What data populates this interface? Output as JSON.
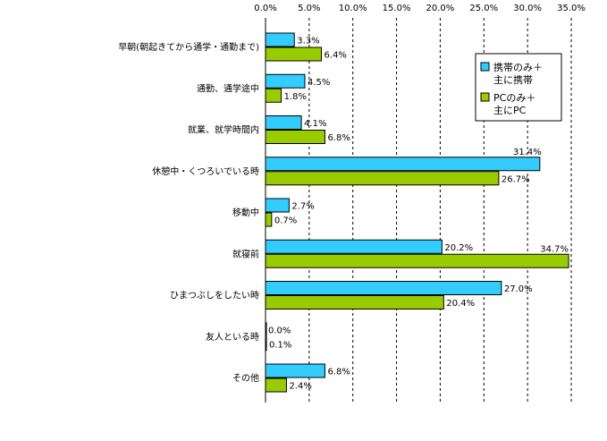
{
  "chart_data": {
    "type": "bar",
    "orientation": "horizontal",
    "title": "",
    "xlabel": "",
    "ylabel": "",
    "xlim": [
      0,
      35
    ],
    "x_ticks": [
      0,
      5,
      10,
      15,
      20,
      25,
      30,
      35
    ],
    "x_tick_labels": [
      "0.0%",
      "5.0%",
      "10.0%",
      "15.0%",
      "20.0%",
      "25.0%",
      "30.0%",
      "35.0%"
    ],
    "x_axis_position": "top",
    "grid": "vertical-dashed",
    "legend_position": "right",
    "categories": [
      "早朝(朝起きてから通学・通勤まで)",
      "通勤、通学途中",
      "就業、就学時間内",
      "休憩中・くつろいでいる時",
      "移動中",
      "就寝前",
      "ひまつぶしをしたい時",
      "友人といる時",
      "その他"
    ],
    "series": [
      {
        "name_lines": [
          "携帯のみ＋",
          "主に携帯"
        ],
        "color": "#33CCFF",
        "values": [
          3.3,
          4.5,
          4.1,
          31.4,
          2.7,
          20.2,
          27.0,
          0.0,
          6.8
        ],
        "labels": [
          "3.3%",
          "4.5%",
          "4.1%",
          "31.4%",
          "2.7%",
          "20.2%",
          "27.0%",
          "0.0%",
          "6.8%"
        ]
      },
      {
        "name_lines": [
          "PCのみ＋",
          "主にPC"
        ],
        "color": "#99CC00",
        "values": [
          6.4,
          1.8,
          6.8,
          26.7,
          0.7,
          34.7,
          20.4,
          0.1,
          2.4
        ],
        "labels": [
          "6.4%",
          "1.8%",
          "6.8%",
          "26.7%",
          "0.7%",
          "34.7%",
          "20.4%",
          "0.1%",
          "2.4%"
        ]
      }
    ]
  }
}
